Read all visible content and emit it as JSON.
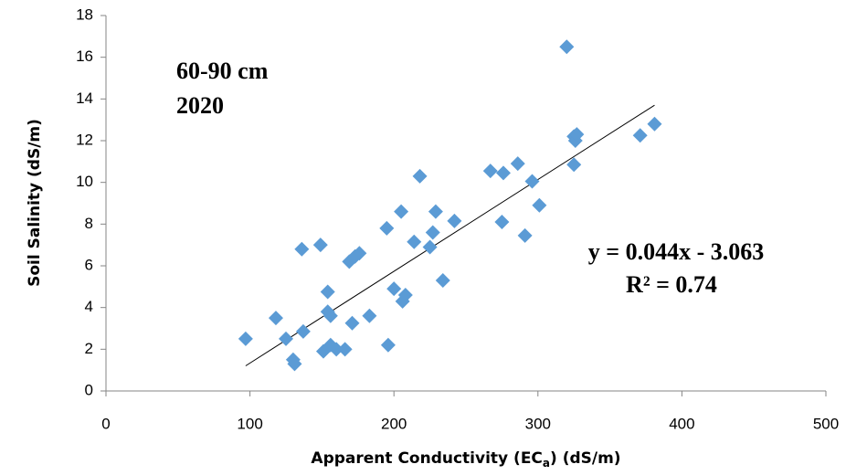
{
  "chart_data": {
    "type": "scatter",
    "x_label": [
      "Apparent Conductivity (EC",
      "a",
      ") (dS/m)"
    ],
    "y_label": "Soil Salinity (dS/m)",
    "annotations": [
      "60-90 cm",
      "2020"
    ],
    "trendline": {
      "label": "y = 0.044x - 3.063",
      "slope": 0.044,
      "intercept": -3.063,
      "r2_label": "R² = 0.74",
      "color": "#000000"
    },
    "color": "#5b9bd5",
    "x": [
      97,
      118,
      125,
      130,
      131,
      136,
      137,
      149,
      151,
      154,
      154,
      156,
      156,
      160,
      166,
      169,
      171,
      173,
      176,
      183,
      195,
      196,
      200,
      205,
      206,
      208,
      214,
      218,
      225,
      227,
      229,
      234,
      242,
      267,
      275,
      276,
      286,
      291,
      296,
      301,
      320,
      325,
      326,
      325,
      327,
      371,
      381
    ],
    "values": [
      2.5,
      3.5,
      2.5,
      1.5,
      1.3,
      6.8,
      2.85,
      7.0,
      1.9,
      4.75,
      3.8,
      2.2,
      3.6,
      2.0,
      2.0,
      6.2,
      3.25,
      6.45,
      6.6,
      3.6,
      7.8,
      2.2,
      4.9,
      8.6,
      4.3,
      4.6,
      7.15,
      10.3,
      6.9,
      7.6,
      8.6,
      5.3,
      8.15,
      10.55,
      8.1,
      10.45,
      10.9,
      7.45,
      10.05,
      8.9,
      16.5,
      12.2,
      12.0,
      10.85,
      12.3,
      12.25,
      12.8
    ],
    "xlim": [
      0,
      500
    ],
    "xticks": [
      0,
      100,
      200,
      300,
      400,
      500
    ],
    "ylim": [
      0,
      18
    ],
    "yticks": [
      0,
      2,
      4,
      6,
      8,
      10,
      12,
      14,
      16,
      18
    ]
  }
}
